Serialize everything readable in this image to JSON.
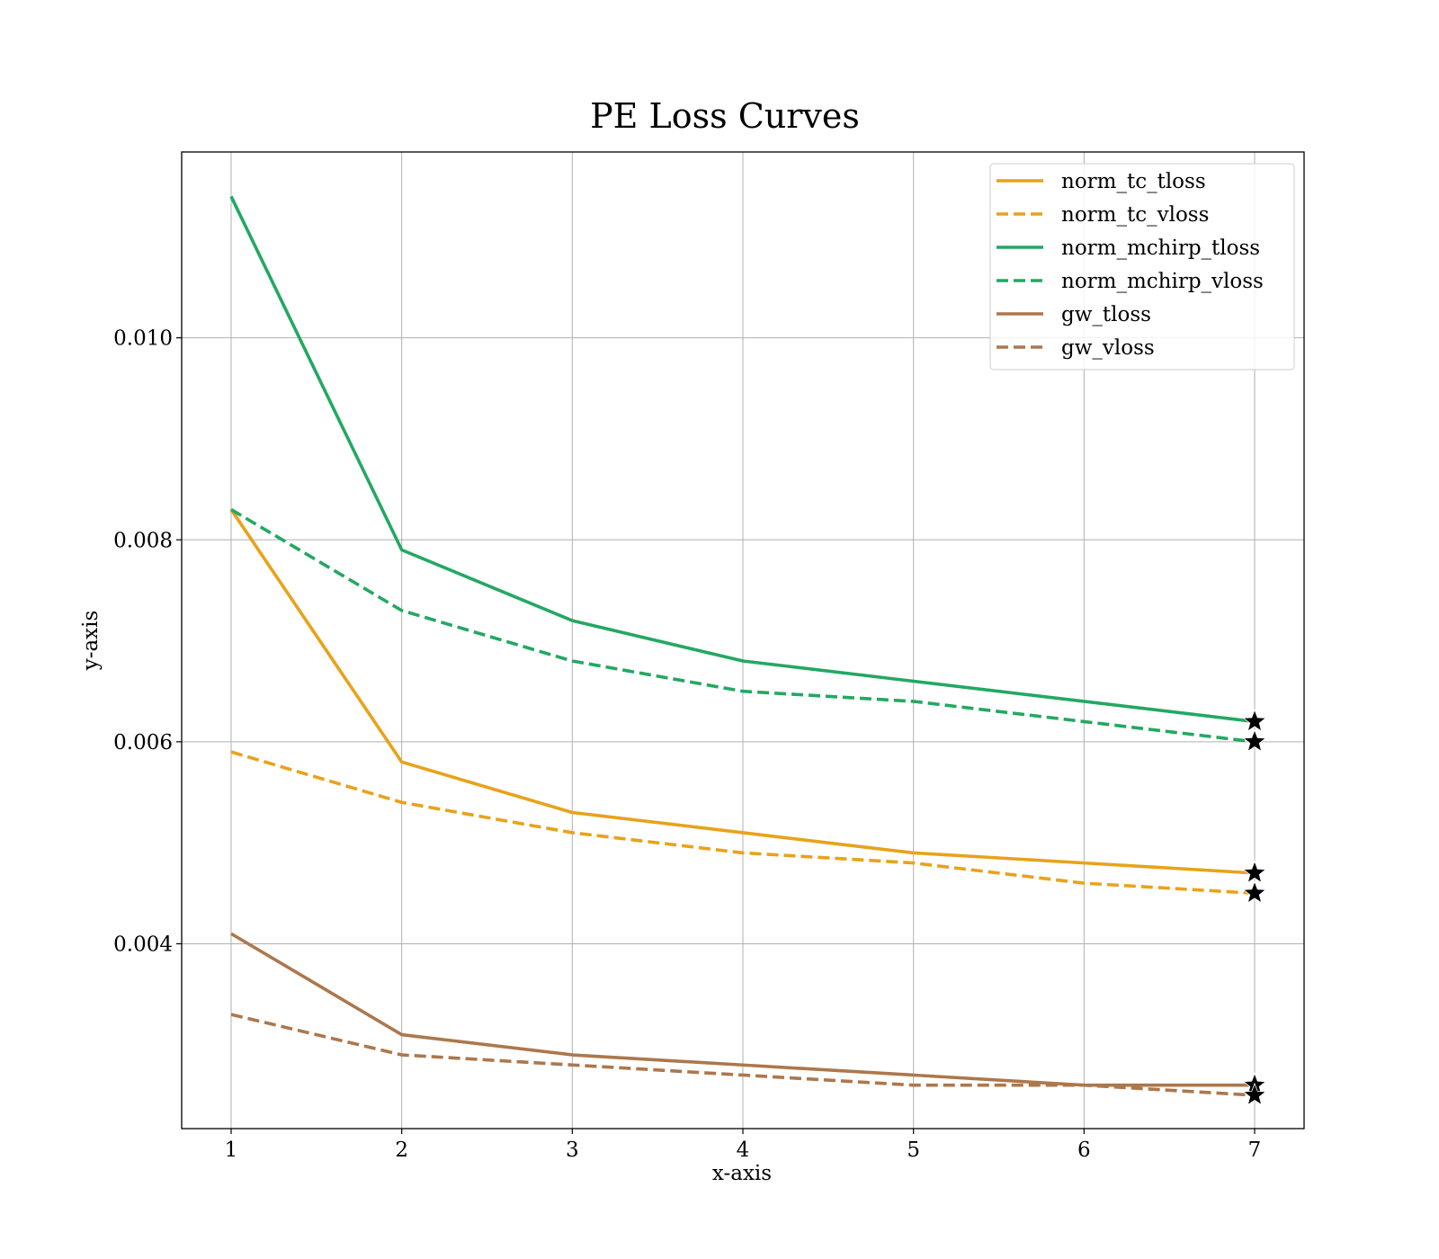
{
  "chart_data": {
    "type": "line",
    "title": "PE Loss Curves",
    "xlabel": "x-axis",
    "ylabel": "y-axis",
    "x": [
      1,
      2,
      3,
      4,
      5,
      6,
      7
    ],
    "xlim": [
      0.71,
      7.29
    ],
    "ylim": [
      0.00217,
      0.01184
    ],
    "xticks": [
      "1",
      "2",
      "3",
      "4",
      "5",
      "6",
      "7"
    ],
    "yticks": [
      {
        "value": 0.004,
        "label": "0.004"
      },
      {
        "value": 0.006,
        "label": "0.006"
      },
      {
        "value": 0.008,
        "label": "0.008"
      },
      {
        "value": 0.01,
        "label": "0.010"
      }
    ],
    "grid": true,
    "legend_position": "top-right",
    "end_marker": "black star at final epoch",
    "series": [
      {
        "name": "norm_tc_tloss",
        "color": "#E8A21B",
        "style": "solid",
        "values": [
          0.0083,
          0.0058,
          0.0053,
          0.0051,
          0.0049,
          0.0048,
          0.0047
        ]
      },
      {
        "name": "norm_tc_vloss",
        "color": "#E8A21B",
        "style": "dashed",
        "values": [
          0.0059,
          0.0054,
          0.0051,
          0.0049,
          0.0048,
          0.0046,
          0.0045
        ]
      },
      {
        "name": "norm_mchirp_tloss",
        "color": "#23A862",
        "style": "solid",
        "values": [
          0.0114,
          0.0079,
          0.0072,
          0.0068,
          0.0066,
          0.0064,
          0.0062
        ]
      },
      {
        "name": "norm_mchirp_vloss",
        "color": "#23A862",
        "style": "dashed",
        "values": [
          0.0083,
          0.0073,
          0.0068,
          0.0065,
          0.0064,
          0.0062,
          0.006
        ]
      },
      {
        "name": "gw_tloss",
        "color": "#AD774C",
        "style": "solid",
        "values": [
          0.0041,
          0.0031,
          0.0029,
          0.0028,
          0.0027,
          0.0026,
          0.0026
        ]
      },
      {
        "name": "gw_vloss",
        "color": "#AD774C",
        "style": "dashed",
        "values": [
          0.0033,
          0.0029,
          0.0028,
          0.0027,
          0.0026,
          0.0026,
          0.0025
        ]
      }
    ]
  }
}
